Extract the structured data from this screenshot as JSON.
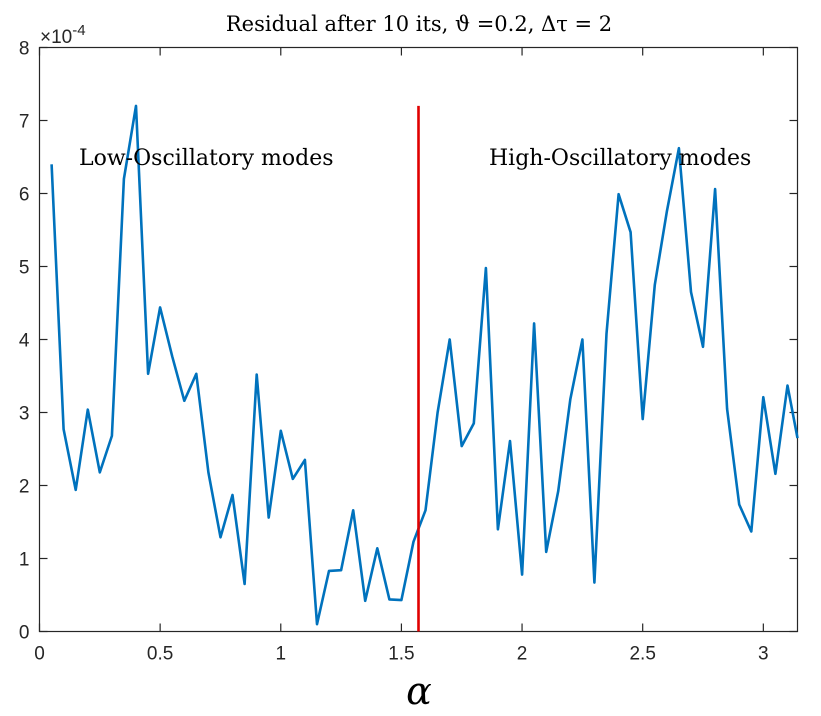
{
  "chart_data": {
    "type": "line",
    "title": "Residual after 10 its, ϑ =0.2, Δτ = 2",
    "xlabel": "α",
    "ylabel": "",
    "y_exponent_label": "×10",
    "y_exponent_power": "-4",
    "xlim": [
      0,
      3.1416
    ],
    "ylim": [
      0,
      8
    ],
    "xticks": [
      0,
      0.5,
      1,
      1.5,
      2,
      2.5,
      3
    ],
    "xtick_labels": [
      "0",
      "0.5",
      "1",
      "1.5",
      "2",
      "2.5",
      "3"
    ],
    "yticks": [
      0,
      1,
      2,
      3,
      4,
      5,
      6,
      7,
      8
    ],
    "ytick_labels": [
      "0",
      "1",
      "2",
      "3",
      "4",
      "5",
      "6",
      "7",
      "8"
    ],
    "series": [
      {
        "name": "residual",
        "color": "#0072BD",
        "x": [
          0.05,
          0.1,
          0.15,
          0.2,
          0.25,
          0.3,
          0.35,
          0.4,
          0.45,
          0.5,
          0.55,
          0.6,
          0.65,
          0.7,
          0.75,
          0.8,
          0.85,
          0.9,
          0.95,
          1.0,
          1.05,
          1.1,
          1.15,
          1.2,
          1.25,
          1.3,
          1.35,
          1.4,
          1.45,
          1.5,
          1.55,
          1.6,
          1.65,
          1.7,
          1.75,
          1.8,
          1.85,
          1.9,
          1.95,
          2.0,
          2.05,
          2.1,
          2.15,
          2.2,
          2.25,
          2.3,
          2.35,
          2.4,
          2.45,
          2.5,
          2.55,
          2.6,
          2.65,
          2.7,
          2.75,
          2.8,
          2.85,
          2.9,
          2.95,
          3.0,
          3.05,
          3.1,
          3.1416
        ],
        "values": [
          6.4,
          2.77,
          1.94,
          3.04,
          2.18,
          2.68,
          6.2,
          7.2,
          3.53,
          4.44,
          3.77,
          3.16,
          3.53,
          2.18,
          1.29,
          1.87,
          0.65,
          3.52,
          1.56,
          2.75,
          2.09,
          2.35,
          0.1,
          0.83,
          0.84,
          1.66,
          0.42,
          1.14,
          0.44,
          0.43,
          1.23,
          1.66,
          3.0,
          4.0,
          2.54,
          2.85,
          4.98,
          1.4,
          2.61,
          0.78,
          4.22,
          1.09,
          1.92,
          3.18,
          4.0,
          0.67,
          4.08,
          5.99,
          5.47,
          2.91,
          4.75,
          5.75,
          6.62,
          4.65,
          3.9,
          6.06,
          3.05,
          1.74,
          1.37,
          3.21,
          2.16,
          3.37,
          2.65
        ]
      },
      {
        "name": "divider",
        "color": "#E00000",
        "x": [
          1.5708,
          1.5708
        ],
        "values": [
          0,
          7.2
        ]
      }
    ],
    "annotations": [
      {
        "id": "low",
        "text": "Low-Oscillatory modes"
      },
      {
        "id": "high",
        "text": "High-Oscillatory modes"
      }
    ],
    "grid": false,
    "box": true
  }
}
